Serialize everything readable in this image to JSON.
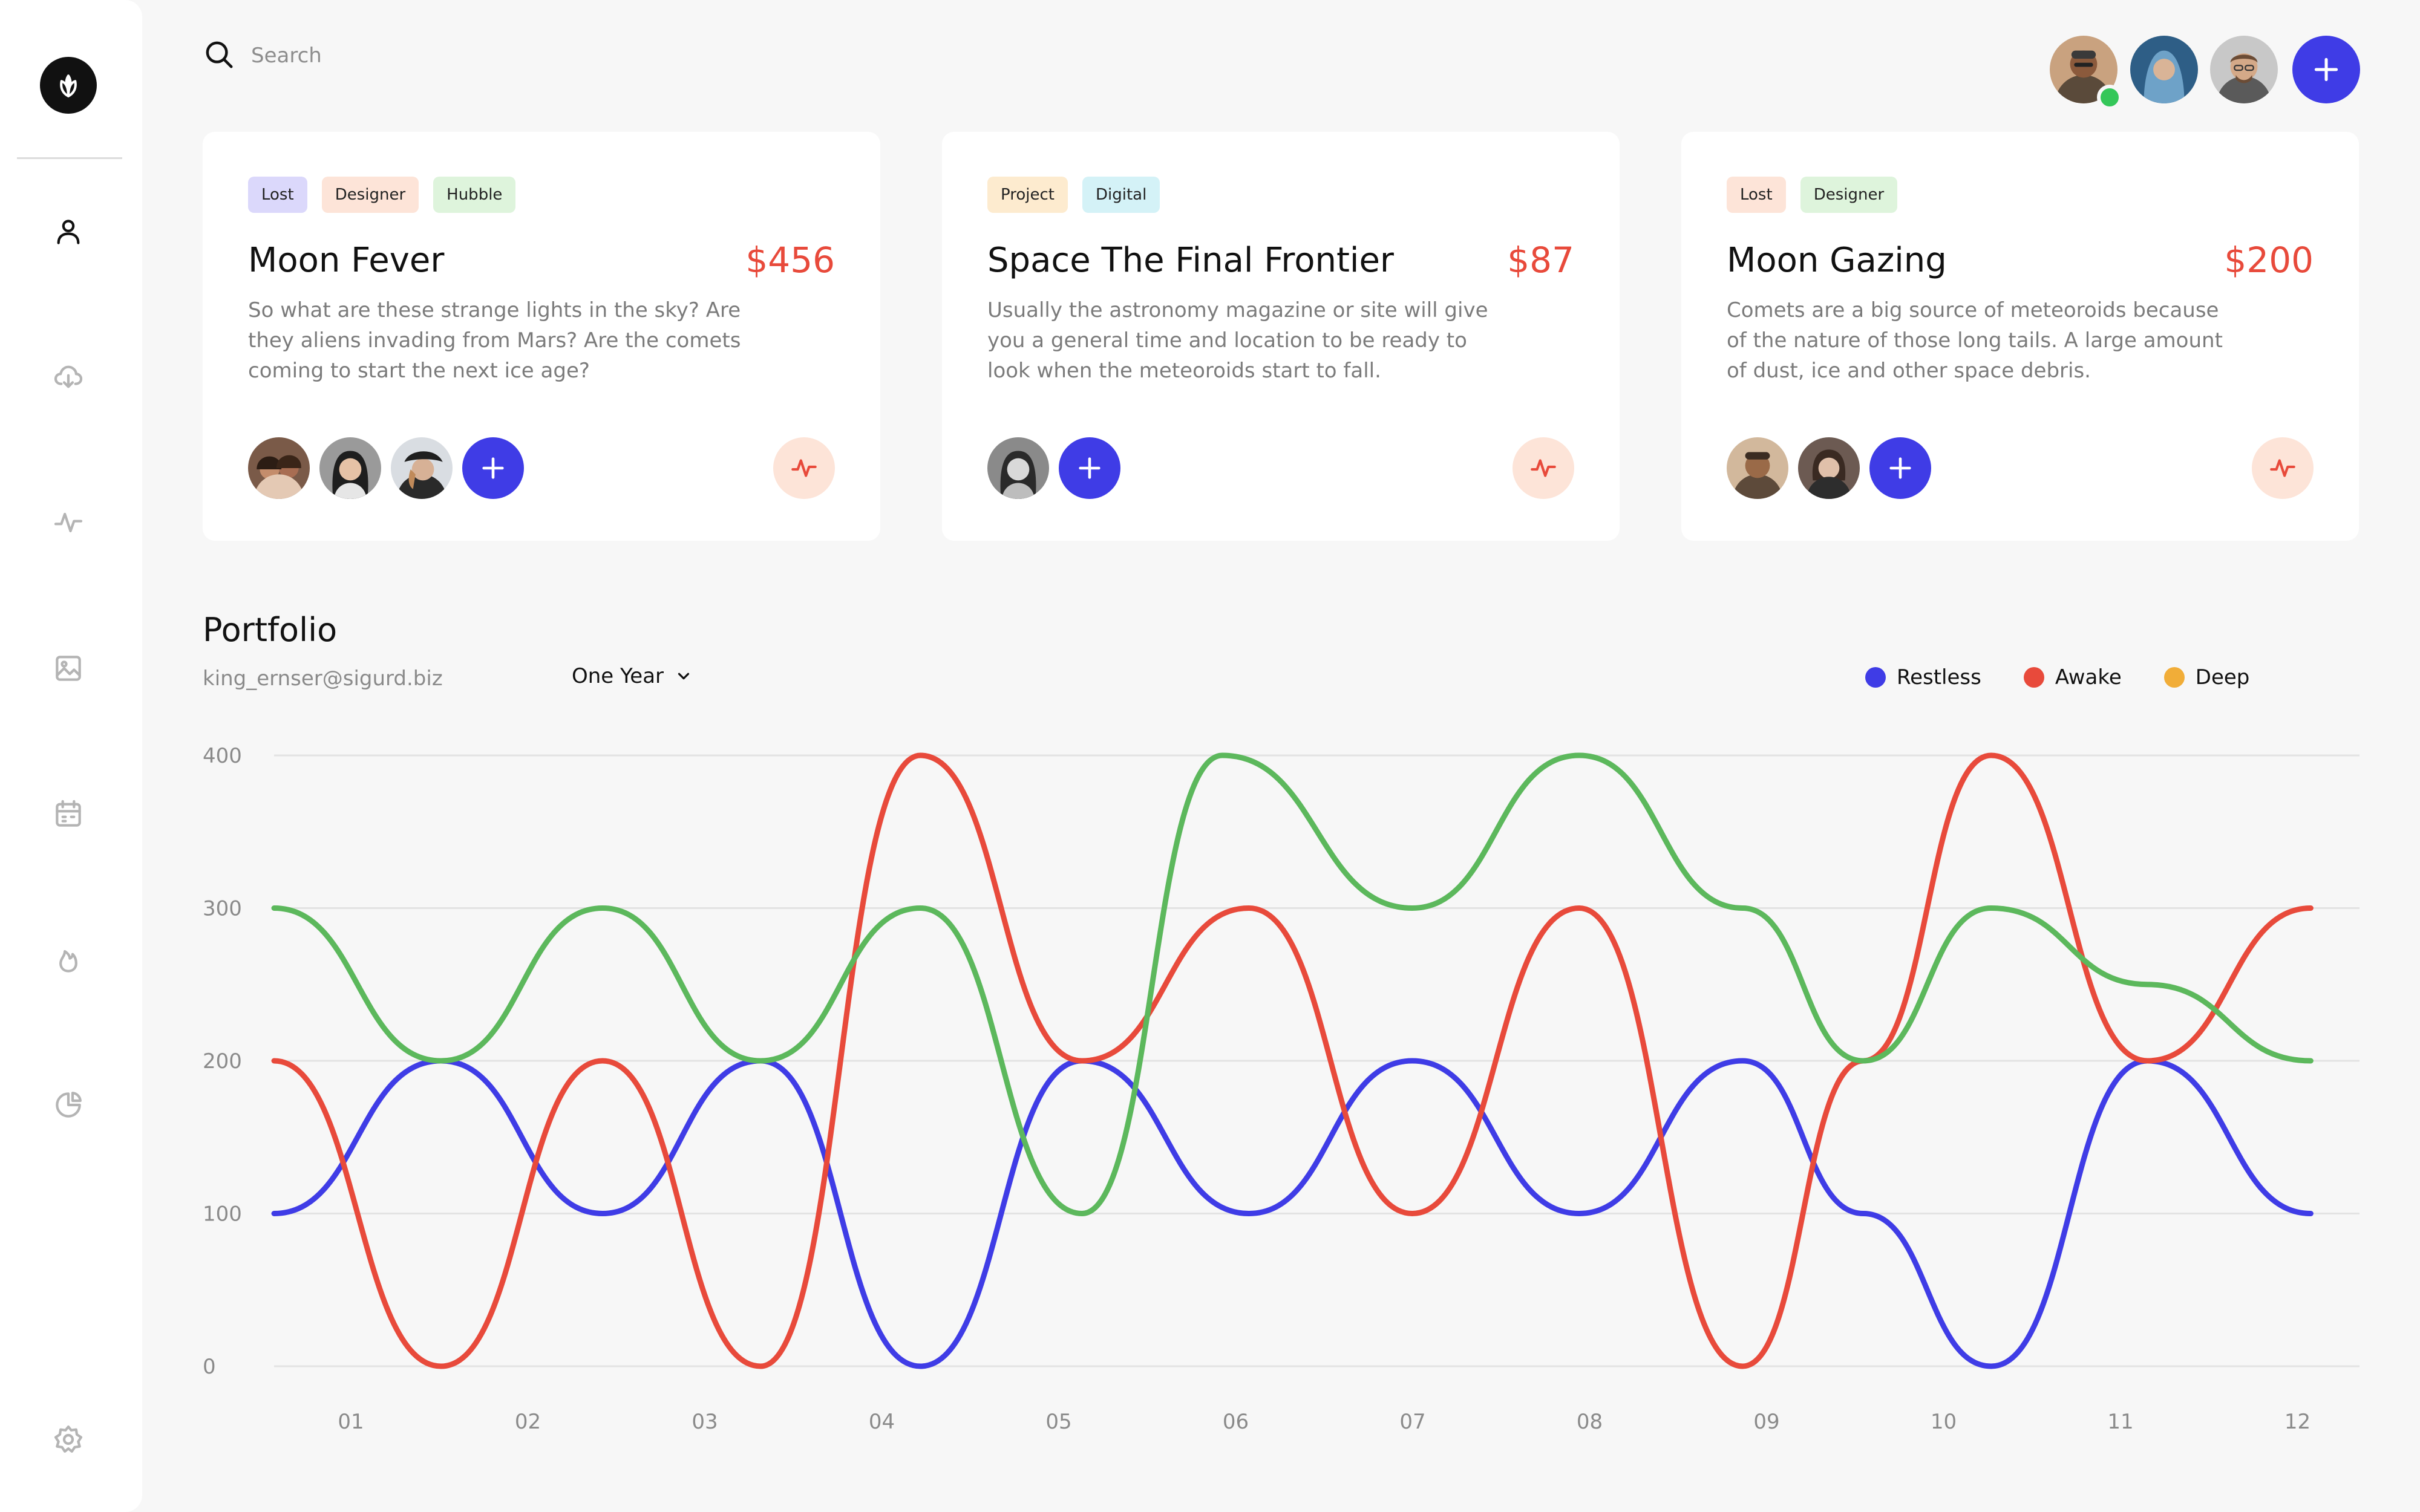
{
  "search": {
    "placeholder": "Search"
  },
  "sidebar": {
    "icons": [
      "user-icon",
      "cloud-download-icon",
      "activity-icon",
      "image-icon",
      "calendar-icon",
      "flame-icon",
      "pie-chart-icon",
      "settings-icon"
    ]
  },
  "colors": {
    "accent": "#3f3ce6",
    "price": "#e84a3b",
    "restless": "#3f3ce6",
    "awake": "#e84a3b",
    "deep": "#f1ad38",
    "green": "#5cb85c"
  },
  "cards": [
    {
      "tags": [
        "Lost",
        "Designer",
        "Hubble"
      ],
      "title": "Moon Fever",
      "price": "$456",
      "description": "So what are these strange lights in the sky? Are they aliens invading from Mars? Are the comets coming to start the next ice age?"
    },
    {
      "tags": [
        "Project",
        "Digital"
      ],
      "title": "Space The Final Frontier",
      "price": "$87",
      "description": "Usually the astronomy magazine or site will give you a general time and location to be ready to look when the meteoroids start to fall."
    },
    {
      "tags": [
        "Lost",
        "Designer"
      ],
      "title": "Moon Gazing",
      "price": "$200",
      "description": "Comets are a big source of meteoroids because of the nature of those long tails. A large amount of dust, ice and other space debris."
    }
  ],
  "portfolio": {
    "title": "Portfolio",
    "email": "king_ernser@sigurd.biz",
    "period": "One Year"
  },
  "chart_data": {
    "type": "line",
    "categories": [
      "01",
      "02",
      "03",
      "04",
      "05",
      "06",
      "07",
      "08",
      "09",
      "10",
      "11",
      "12"
    ],
    "ylim": [
      0,
      400
    ],
    "yticks": [
      "0",
      "100",
      "200",
      "300",
      "400"
    ],
    "legend": [
      "Restless",
      "Awake",
      "Deep"
    ],
    "legend_position": "top-right",
    "grid": true,
    "series": [
      {
        "name": "Restless",
        "color": "#3f3ce6",
        "x": [
          0,
          0.94,
          1.85,
          2.74,
          3.64,
          4.55,
          5.49,
          6.41,
          7.35,
          8.27,
          8.95,
          9.67,
          10.55,
          11.47
        ],
        "values": [
          100,
          200,
          100,
          200,
          0,
          200,
          100,
          200,
          100,
          200,
          100,
          0,
          200,
          100
        ]
      },
      {
        "name": "Awake",
        "color": "#e84a3b",
        "x": [
          0,
          0.94,
          1.85,
          2.74,
          3.64,
          4.55,
          5.49,
          6.41,
          7.35,
          8.27,
          8.95,
          9.67,
          10.55,
          11.47
        ],
        "values": [
          200,
          0,
          200,
          0,
          400,
          200,
          300,
          100,
          300,
          0,
          200,
          400,
          200,
          300
        ]
      },
      {
        "color": "#5cb85c",
        "x": [
          0,
          0.94,
          1.85,
          2.74,
          3.64,
          4.55,
          5.34,
          6.41,
          7.35,
          8.27,
          8.95,
          9.67,
          10.55,
          11.47
        ],
        "values": [
          300,
          200,
          300,
          200,
          300,
          100,
          400,
          300,
          400,
          300,
          200,
          300,
          250,
          200
        ]
      }
    ]
  }
}
